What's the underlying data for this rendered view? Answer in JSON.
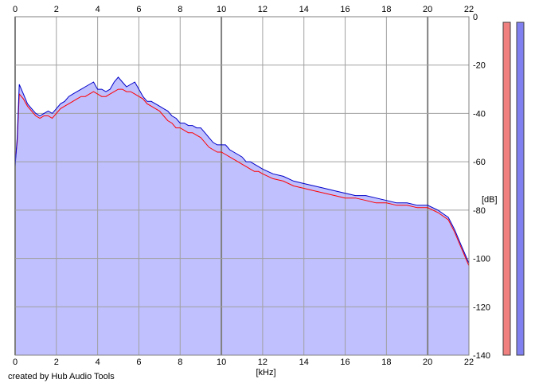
{
  "credit": "created by Hub Audio Tools",
  "chart_data": {
    "type": "area",
    "xlabel": "[kHz]",
    "ylabel": "[dB]",
    "xlim": [
      0,
      22
    ],
    "ylim": [
      -140,
      0
    ],
    "x_ticks": [
      0,
      2,
      4,
      6,
      8,
      10,
      12,
      14,
      16,
      18,
      20,
      22
    ],
    "y_ticks": [
      0,
      -20,
      -40,
      -60,
      -80,
      -100,
      -120,
      -140
    ],
    "grid": true,
    "colors": {
      "fill": "#c0c0ff",
      "blue": "#0000c8",
      "red": "#ff0000",
      "meter_left": "#f08080",
      "meter_right": "#8080f0"
    },
    "series": [
      {
        "color": "blue",
        "x": [
          0,
          0.1,
          0.2,
          0.4,
          0.6,
          0.8,
          1.0,
          1.2,
          1.4,
          1.6,
          1.8,
          2.0,
          2.2,
          2.4,
          2.6,
          2.8,
          3.0,
          3.2,
          3.4,
          3.6,
          3.8,
          4.0,
          4.2,
          4.4,
          4.6,
          4.8,
          5.0,
          5.2,
          5.4,
          5.6,
          5.8,
          6.0,
          6.2,
          6.4,
          6.6,
          6.8,
          7.0,
          7.2,
          7.4,
          7.6,
          7.8,
          8.0,
          8.2,
          8.4,
          8.6,
          8.8,
          9.0,
          9.2,
          9.4,
          9.6,
          9.8,
          10.0,
          10.2,
          10.4,
          10.6,
          10.8,
          11.0,
          11.2,
          11.4,
          11.6,
          11.8,
          12.0,
          12.5,
          13.0,
          13.5,
          14.0,
          14.5,
          15.0,
          15.5,
          16.0,
          16.5,
          17.0,
          17.5,
          18.0,
          18.5,
          19.0,
          19.5,
          20.0,
          20.5,
          21.0,
          21.3,
          21.6,
          21.8,
          22.0
        ],
        "values": [
          -62,
          -50,
          -28,
          -32,
          -36,
          -38,
          -40,
          -41,
          -40,
          -39,
          -40,
          -38,
          -36,
          -35,
          -33,
          -32,
          -31,
          -30,
          -29,
          -28,
          -27,
          -30,
          -30,
          -31,
          -30,
          -27,
          -25,
          -27,
          -29,
          -28,
          -27,
          -30,
          -33,
          -35,
          -35,
          -36,
          -37,
          -38,
          -39,
          -41,
          -42,
          -44,
          -44,
          -45,
          -45,
          -46,
          -46,
          -48,
          -50,
          -52,
          -53,
          -53,
          -53,
          -55,
          -56,
          -57,
          -58,
          -60,
          -60,
          -61,
          -62,
          -63,
          -65,
          -66,
          -68,
          -69,
          -70,
          -71,
          -72,
          -73,
          -74,
          -74,
          -75,
          -76,
          -77,
          -77,
          -78,
          -78,
          -80,
          -83,
          -88,
          -94,
          -98,
          -102
        ]
      },
      {
        "color": "red",
        "x": [
          0,
          0.1,
          0.2,
          0.4,
          0.6,
          0.8,
          1.0,
          1.2,
          1.4,
          1.6,
          1.8,
          2.0,
          2.2,
          2.4,
          2.6,
          2.8,
          3.0,
          3.2,
          3.4,
          3.6,
          3.8,
          4.0,
          4.2,
          4.4,
          4.6,
          4.8,
          5.0,
          5.2,
          5.4,
          5.6,
          5.8,
          6.0,
          6.2,
          6.4,
          6.6,
          6.8,
          7.0,
          7.2,
          7.4,
          7.6,
          7.8,
          8.0,
          8.2,
          8.4,
          8.6,
          8.8,
          9.0,
          9.2,
          9.4,
          9.6,
          9.8,
          10.0,
          10.2,
          10.4,
          10.6,
          10.8,
          11.0,
          11.2,
          11.4,
          11.6,
          11.8,
          12.0,
          12.5,
          13.0,
          13.5,
          14.0,
          14.5,
          15.0,
          15.5,
          16.0,
          16.5,
          17.0,
          17.5,
          18.0,
          18.5,
          19.0,
          19.5,
          20.0,
          20.5,
          21.0,
          21.3,
          21.6,
          21.8,
          22.0
        ],
        "values": [
          -60,
          -52,
          -32,
          -34,
          -37,
          -39,
          -41,
          -42,
          -41,
          -41,
          -42,
          -40,
          -38,
          -37,
          -36,
          -35,
          -34,
          -33,
          -33,
          -32,
          -31,
          -32,
          -33,
          -33,
          -32,
          -31,
          -30,
          -30,
          -31,
          -31,
          -32,
          -33,
          -34,
          -36,
          -37,
          -38,
          -39,
          -41,
          -43,
          -44,
          -46,
          -46,
          -47,
          -48,
          -48,
          -49,
          -50,
          -52,
          -54,
          -55,
          -56,
          -56,
          -57,
          -58,
          -59,
          -60,
          -61,
          -62,
          -63,
          -64,
          -64,
          -65,
          -67,
          -68,
          -70,
          -71,
          -72,
          -73,
          -74,
          -75,
          -75,
          -76,
          -77,
          -77,
          -78,
          -78,
          -79,
          -79,
          -81,
          -84,
          -89,
          -95,
          -99,
          -103
        ]
      }
    ]
  }
}
